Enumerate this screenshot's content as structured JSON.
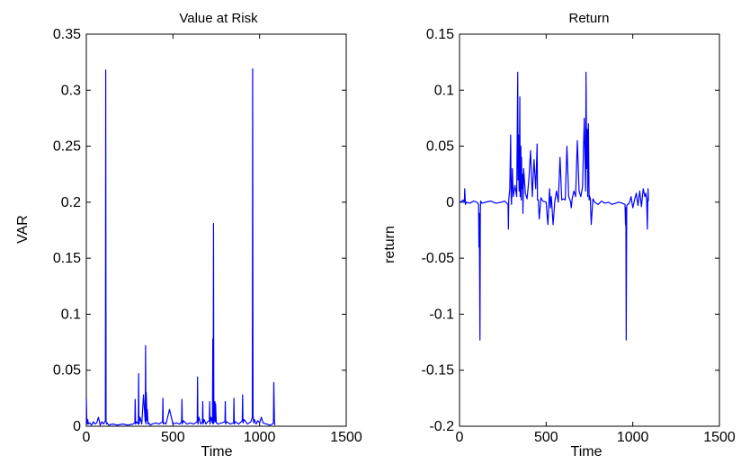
{
  "chart_data": [
    {
      "type": "line",
      "title": "Value at Risk",
      "xlabel": "Time",
      "ylabel": "VAR",
      "xlim": [
        0,
        1500
      ],
      "ylim": [
        0,
        0.35
      ],
      "xticks": [
        "0",
        "500",
        "1000",
        "1500"
      ],
      "yticks": [
        "0",
        "0.05",
        "0.1",
        "0.15",
        "0.2",
        "0.25",
        "0.3",
        "0.35"
      ],
      "grid": false,
      "color": "#0000ff",
      "series": [
        {
          "x": [
            0,
            3,
            6,
            8,
            12,
            20,
            30,
            40,
            50,
            60,
            70,
            80,
            90,
            100,
            110,
            112,
            114,
            118,
            120,
            124,
            130,
            150,
            180,
            210,
            240,
            270,
            280,
            282,
            284,
            290,
            300,
            302,
            304,
            310,
            320,
            330,
            340,
            342,
            344,
            346,
            350,
            352,
            356,
            360,
            370,
            380,
            400,
            420,
            440,
            442,
            444,
            450,
            460,
            480,
            500,
            520,
            540,
            550,
            552,
            554,
            560,
            580,
            600,
            620,
            640,
            642,
            644,
            650,
            660,
            670,
            672,
            674,
            680,
            690,
            700,
            710,
            712,
            714,
            720,
            728,
            730,
            732,
            734,
            736,
            740,
            742,
            744,
            746,
            750,
            760,
            780,
            800,
            802,
            804,
            810,
            830,
            850,
            852,
            854,
            860,
            880,
            900,
            902,
            904,
            910,
            930,
            950,
            958,
            960,
            962,
            966,
            970,
            980,
            990,
            1000,
            1010,
            1020,
            1040,
            1060,
            1075,
            1080,
            1082,
            1086,
            1090
          ],
          "y": [
            0.025,
            0.004,
            0.002,
            0.006,
            0.002,
            0.003,
            0.001,
            0.004,
            0.002,
            0.003,
            0.008,
            0.001,
            0.004,
            0.002,
            0.005,
            0.318,
            0.004,
            0.002,
            0.003,
            0.002,
            0.001,
            0.002,
            0.001,
            0.002,
            0.001,
            0.002,
            0.003,
            0.024,
            0.002,
            0.004,
            0.002,
            0.047,
            0.002,
            0.008,
            0.002,
            0.028,
            0.004,
            0.072,
            0.002,
            0.03,
            0.005,
            0.015,
            0.002,
            0.003,
            0.001,
            0.002,
            0.003,
            0.002,
            0.004,
            0.025,
            0.002,
            0.003,
            0.002,
            0.015,
            0.002,
            0.003,
            0.002,
            0.004,
            0.024,
            0.002,
            0.005,
            0.002,
            0.003,
            0.002,
            0.004,
            0.044,
            0.002,
            0.008,
            0.002,
            0.004,
            0.022,
            0.002,
            0.006,
            0.002,
            0.004,
            0.005,
            0.022,
            0.002,
            0.008,
            0.003,
            0.078,
            0.002,
            0.181,
            0.003,
            0.01,
            0.022,
            0.004,
            0.02,
            0.003,
            0.002,
            0.003,
            0.004,
            0.022,
            0.002,
            0.004,
            0.002,
            0.003,
            0.025,
            0.002,
            0.004,
            0.002,
            0.005,
            0.028,
            0.003,
            0.006,
            0.002,
            0.004,
            0.008,
            0.319,
            0.01,
            0.003,
            0.006,
            0.002,
            0.005,
            0.003,
            0.008,
            0.003,
            0.002,
            0.001,
            0.002,
            0.003,
            0.039,
            0.002,
            0.001
          ]
        }
      ]
    },
    {
      "type": "line",
      "title": "Return",
      "xlabel": "Time",
      "ylabel": "return",
      "xlim": [
        0,
        1500
      ],
      "ylim": [
        -0.2,
        0.15
      ],
      "xticks": [
        "0",
        "500",
        "1000",
        "1500"
      ],
      "yticks": [
        "-0.2",
        "-0.15",
        "-0.1",
        "-0.05",
        "0",
        "0.05",
        "0.1",
        "0.15"
      ],
      "grid": false,
      "color": "#0000ff",
      "series": [
        {
          "x": [
            0,
            10,
            20,
            28,
            30,
            34,
            40,
            60,
            80,
            100,
            110,
            112,
            114,
            118,
            120,
            122,
            126,
            130,
            150,
            180,
            210,
            240,
            260,
            280,
            282,
            284,
            290,
            295,
            298,
            300,
            305,
            310,
            320,
            330,
            336,
            338,
            340,
            344,
            348,
            350,
            354,
            356,
            358,
            360,
            364,
            366,
            370,
            380,
            390,
            400,
            410,
            420,
            430,
            440,
            448,
            450,
            455,
            460,
            470,
            480,
            500,
            510,
            520,
            525,
            530,
            540,
            550,
            560,
            570,
            580,
            590,
            600,
            610,
            620,
            630,
            640,
            645,
            650,
            660,
            670,
            680,
            690,
            700,
            710,
            720,
            728,
            730,
            734,
            738,
            740,
            744,
            748,
            750,
            755,
            760,
            770,
            780,
            800,
            820,
            840,
            860,
            880,
            900,
            920,
            940,
            955,
            958,
            960,
            962,
            965,
            970,
            980,
            990,
            1000,
            1010,
            1020,
            1030,
            1040,
            1050,
            1060,
            1070,
            1075,
            1080,
            1084,
            1088,
            1090
          ],
          "y": [
            0.001,
            0.0,
            0.002,
            0.0,
            0.012,
            -0.002,
            0.0,
            -0.001,
            0.001,
            0.0,
            -0.002,
            -0.04,
            -0.01,
            -0.123,
            -0.01,
            0.001,
            0.0,
            -0.001,
            0.0,
            0.001,
            -0.001,
            0.0,
            0.001,
            -0.002,
            -0.024,
            0.002,
            0.012,
            0.06,
            0.005,
            -0.002,
            0.03,
            0.005,
            0.015,
            0.005,
            0.116,
            0.02,
            0.06,
            0.01,
            0.094,
            0.005,
            0.05,
            0.002,
            0.04,
            0.012,
            0.025,
            -0.01,
            0.03,
            0.008,
            0.003,
            0.02,
            0.046,
            0.005,
            0.038,
            0.012,
            0.052,
            0.002,
            0.002,
            -0.015,
            0.004,
            0.001,
            0.0,
            -0.02,
            0.012,
            -0.005,
            0.005,
            -0.02,
            0.001,
            0.01,
            0.0,
            0.04,
            0.002,
            0.003,
            0.002,
            0.05,
            0.005,
            0.001,
            -0.005,
            0.003,
            0.01,
            0.005,
            0.055,
            0.01,
            0.005,
            0.014,
            0.075,
            0.01,
            0.116,
            0.03,
            0.065,
            0.005,
            0.07,
            0.002,
            0.006,
            0.003,
            -0.02,
            0.003,
            0.0,
            -0.002,
            0.001,
            -0.001,
            0.0,
            -0.002,
            -0.001,
            0.0,
            -0.001,
            -0.002,
            -0.02,
            -0.005,
            -0.123,
            -0.003,
            -0.002,
            -0.001,
            0.005,
            -0.005,
            0.002,
            0.008,
            -0.003,
            0.01,
            -0.004,
            0.012,
            0.005,
            0.008,
            0.002,
            -0.024,
            0.012,
            0.001
          ]
        }
      ]
    }
  ]
}
